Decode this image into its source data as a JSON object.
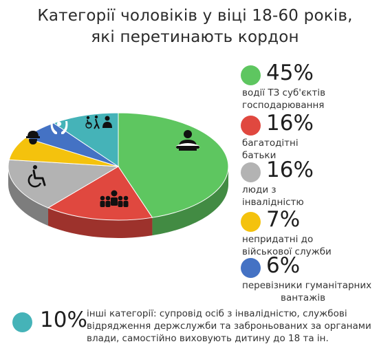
{
  "title": {
    "line1": "Категорії чоловіків у віці 18-60 років,",
    "line2": "які перетинають кордон"
  },
  "chart_data": {
    "type": "pie",
    "title": "Категорії чоловіків у віці 18-60 років, які перетинають кордон",
    "slices": [
      {
        "label": "45%",
        "value": 45,
        "description": "водії ТЗ суб'єктів господарювання",
        "color": "#5ec660",
        "icon": "steering-wheel-driver-icon"
      },
      {
        "label": "16%",
        "value": 16,
        "description": "багатодітні батьки",
        "color": "#e0483f",
        "icon": "family-icon"
      },
      {
        "label": "16%",
        "value": 16,
        "description": "люди з інвалідністю",
        "color": "#b3b3b3",
        "icon": "wheelchair-icon"
      },
      {
        "label": "7%",
        "value": 7,
        "description": "непридатні до військової служби",
        "color": "#f4c20d",
        "icon": "helmet-worker-icon"
      },
      {
        "label": "6%",
        "value": 6,
        "description": "перевізники гуманітарних вантажів",
        "color": "#4472c4",
        "icon": "hands-care-icon"
      },
      {
        "label": "10%",
        "value": 10,
        "description": "інші категорії: супровід осіб з інвалідністю, службові відрядження держслужби та заброньованих за органами влади, самостійно виховують дитину до 18 та ін.",
        "color": "#45b3b8",
        "icon": "disability-escort-icon"
      }
    ]
  },
  "legend": [
    {
      "pct": "45%",
      "line1": "водії ТЗ суб'єктів",
      "line2": "господарювання"
    },
    {
      "pct": "16%",
      "line1": "багатодітні",
      "line2": "батьки"
    },
    {
      "pct": "16%",
      "line1": "люди з",
      "line2": "інвалідністю"
    },
    {
      "pct": "7%",
      "line1": "непридатні до",
      "line2": "військової служби"
    },
    {
      "pct": "6%",
      "line1": "перевізники гуманітарних",
      "line2": "вантажів"
    }
  ],
  "footnote": {
    "pct": "10%",
    "line1": "інші категорії: супровід осіб з інвалідністю, службові",
    "line2": "відрядження держслужби та заброньованих за органами",
    "line3": "влади, самостійно виховують дитину до 18 та ін."
  }
}
